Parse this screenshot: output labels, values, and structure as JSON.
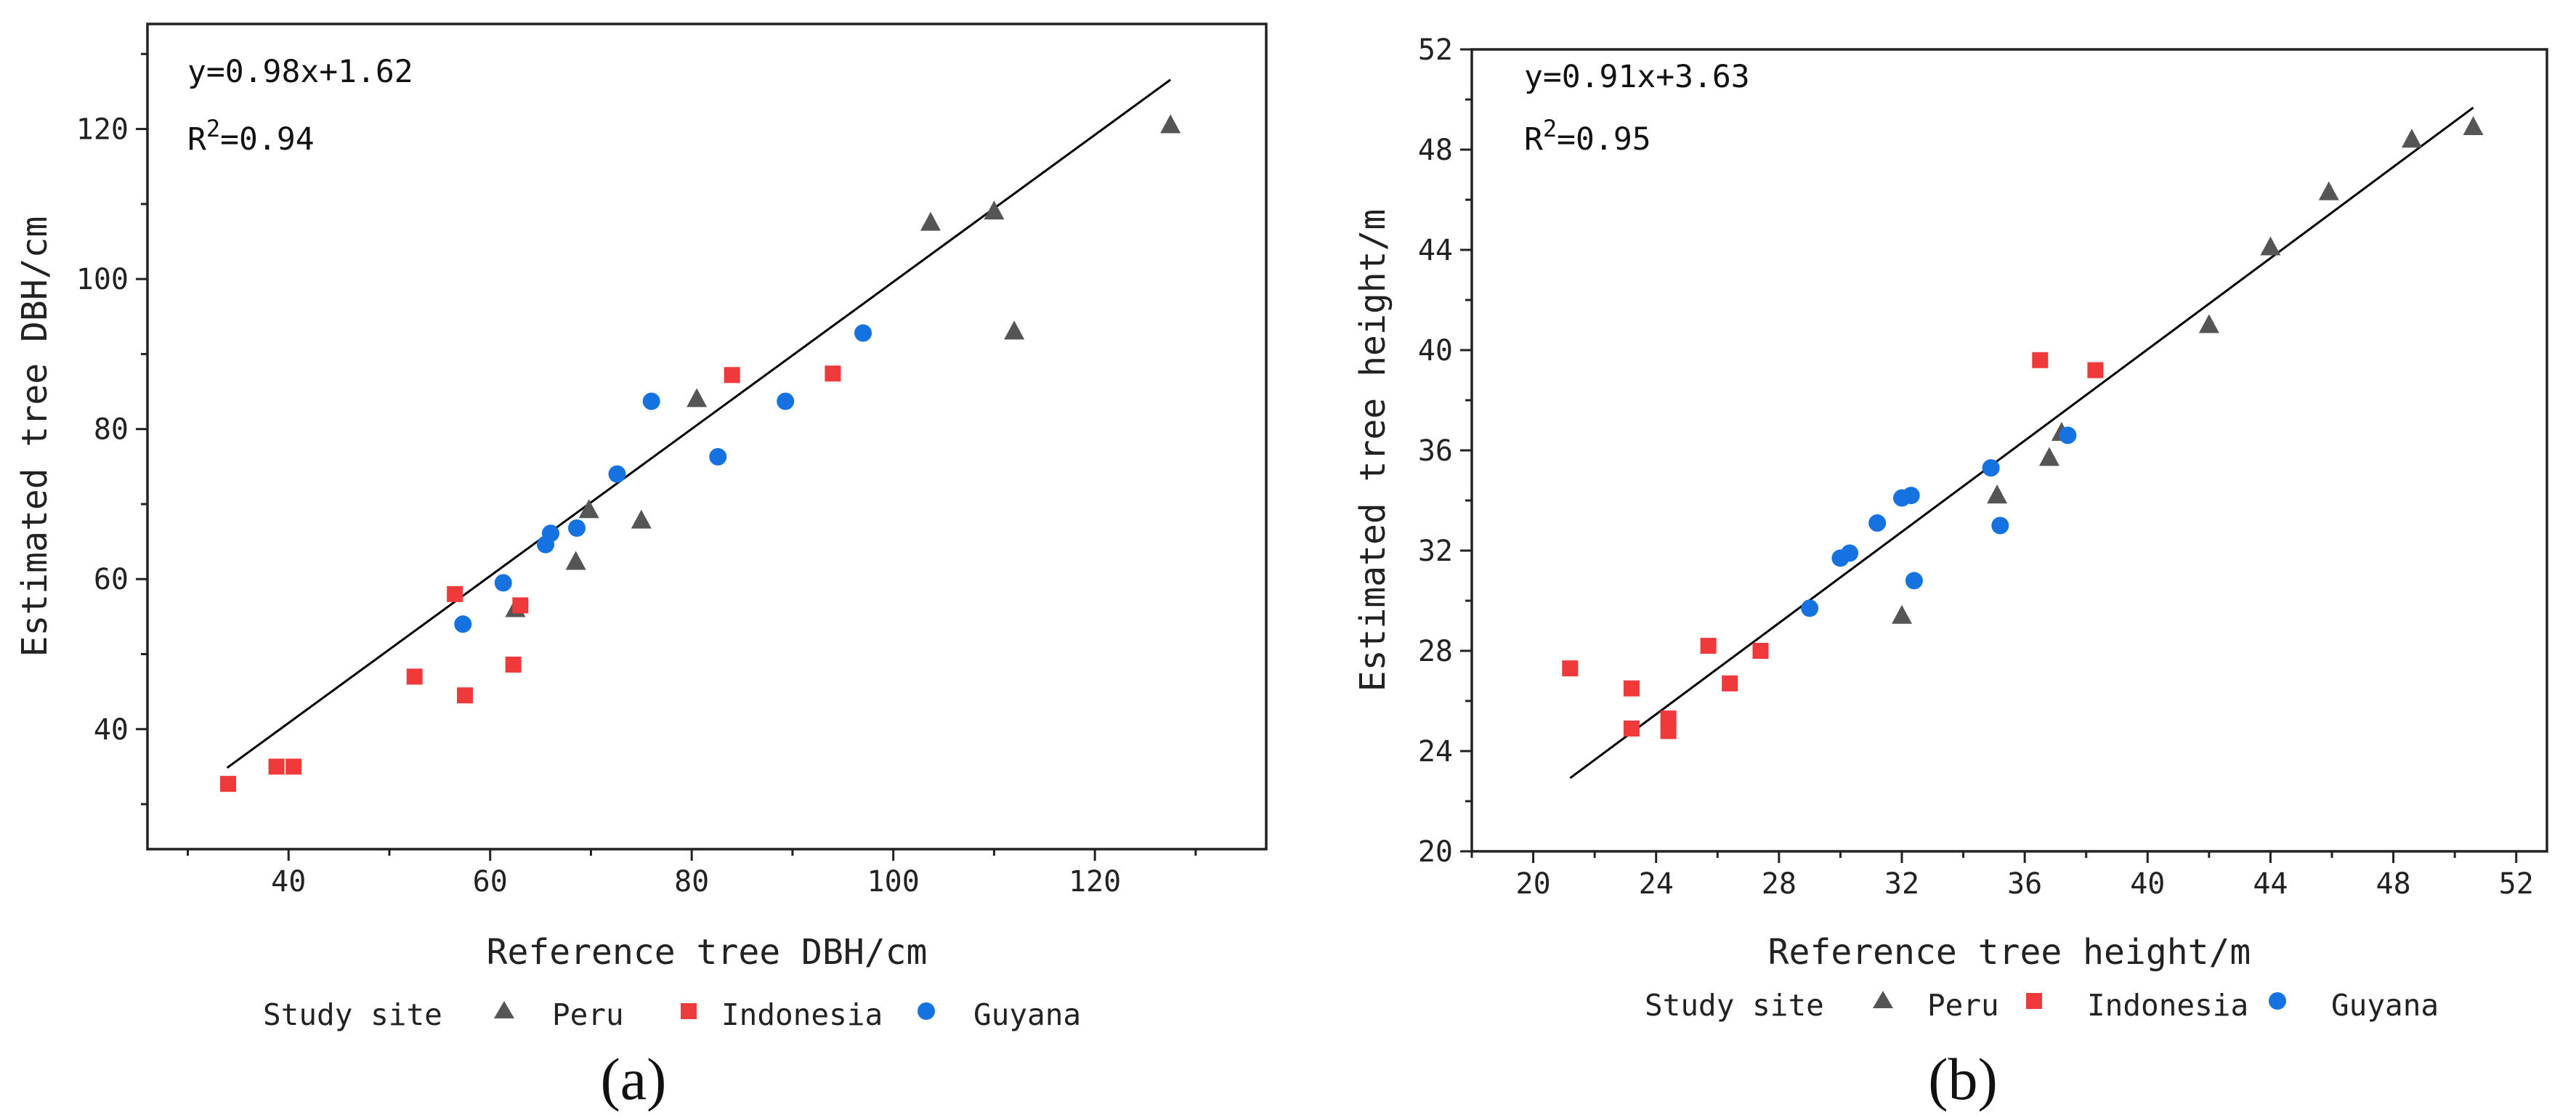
{
  "legend": {
    "title": "Study site",
    "items": [
      "Peru",
      "Indonesia",
      "Guyana"
    ]
  },
  "colors": {
    "Peru": "#555555",
    "Indonesia": "#f0393a",
    "Guyana": "#1672e0",
    "fit": "#000000"
  },
  "chart_data": [
    {
      "type": "scatter",
      "panel_label": "(a)",
      "xlabel": "Reference tree DBH/cm",
      "ylabel": "Estimated tree DBH/cm",
      "equation": "y=0.98x+1.62",
      "r2_prefix": "R",
      "r2_sup": "2",
      "r2_value": "=0.94",
      "xlim": [
        26,
        137
      ],
      "ylim": [
        24,
        134
      ],
      "xticks": [
        40,
        60,
        80,
        100,
        120
      ],
      "yticks": [
        40,
        60,
        80,
        100,
        120
      ],
      "grid": false,
      "legend_position": "bottom",
      "fit": {
        "slope": 0.98,
        "intercept": 1.62,
        "x_range": [
          33.9,
          127.5
        ]
      },
      "series": [
        {
          "name": "Peru",
          "marker": "triangle",
          "points": [
            [
              127.5,
              120.5
            ],
            [
              110,
              109
            ],
            [
              103.7,
              107.5
            ],
            [
              112,
              93
            ],
            [
              80.5,
              84
            ],
            [
              69.8,
              69.2
            ],
            [
              75,
              67.8
            ],
            [
              68.5,
              62.3
            ],
            [
              62.5,
              56
            ]
          ]
        },
        {
          "name": "Indonesia",
          "marker": "square",
          "points": [
            [
              84,
              87.2
            ],
            [
              94,
              87.4
            ],
            [
              56.5,
              58
            ],
            [
              63,
              56.5
            ],
            [
              62.3,
              48.6
            ],
            [
              57.5,
              44.5
            ],
            [
              52.5,
              47
            ],
            [
              38.8,
              35
            ],
            [
              40.5,
              35
            ],
            [
              34,
              32.7
            ]
          ]
        },
        {
          "name": "Guyana",
          "marker": "circle",
          "points": [
            [
              97,
              92.8
            ],
            [
              76,
              83.7
            ],
            [
              89.3,
              83.7
            ],
            [
              82.6,
              76.3
            ],
            [
              72.6,
              74
            ],
            [
              68.6,
              66.8
            ],
            [
              66,
              66.1
            ],
            [
              65.5,
              64.6
            ],
            [
              61.3,
              59.5
            ],
            [
              57.3,
              54
            ]
          ]
        }
      ]
    },
    {
      "type": "scatter",
      "panel_label": "(b)",
      "xlabel": "Reference tree height/m",
      "ylabel": "Estimated tree height/m",
      "equation": "y=0.91x+3.63",
      "r2_prefix": "R",
      "r2_sup": "2",
      "r2_value": "=0.95",
      "xlim": [
        18,
        53
      ],
      "ylim": [
        20,
        52
      ],
      "xticks": [
        20,
        24,
        28,
        32,
        36,
        40,
        44,
        48,
        52
      ],
      "yticks": [
        20,
        24,
        28,
        32,
        36,
        40,
        44,
        48,
        52
      ],
      "grid": false,
      "legend_position": "bottom",
      "fit": {
        "slope": 0.91,
        "intercept": 3.63,
        "x_range": [
          21.2,
          50.6
        ]
      },
      "series": [
        {
          "name": "Peru",
          "marker": "triangle",
          "points": [
            [
              50.6,
              48.9
            ],
            [
              48.6,
              48.4
            ],
            [
              45.9,
              46.3
            ],
            [
              44,
              44.1
            ],
            [
              42,
              41
            ],
            [
              37.2,
              36.7
            ],
            [
              36.8,
              35.7
            ],
            [
              35.1,
              34.2
            ],
            [
              32,
              29.4
            ]
          ]
        },
        {
          "name": "Indonesia",
          "marker": "square",
          "points": [
            [
              36.5,
              39.6
            ],
            [
              38.3,
              39.2
            ],
            [
              21.2,
              27.3
            ],
            [
              23.2,
              26.5
            ],
            [
              23.2,
              24.9
            ],
            [
              24.4,
              25.3
            ],
            [
              24.4,
              24.8
            ],
            [
              25.7,
              28.2
            ],
            [
              26.4,
              26.7
            ],
            [
              27.4,
              28
            ]
          ]
        },
        {
          "name": "Guyana",
          "marker": "circle",
          "points": [
            [
              37.4,
              36.6
            ],
            [
              34.9,
              35.3
            ],
            [
              32.3,
              34.2
            ],
            [
              32,
              34.1
            ],
            [
              31.2,
              33.1
            ],
            [
              35.2,
              33
            ],
            [
              30.3,
              31.9
            ],
            [
              30,
              31.7
            ],
            [
              32.4,
              30.8
            ],
            [
              29,
              29.7
            ]
          ]
        }
      ]
    }
  ]
}
